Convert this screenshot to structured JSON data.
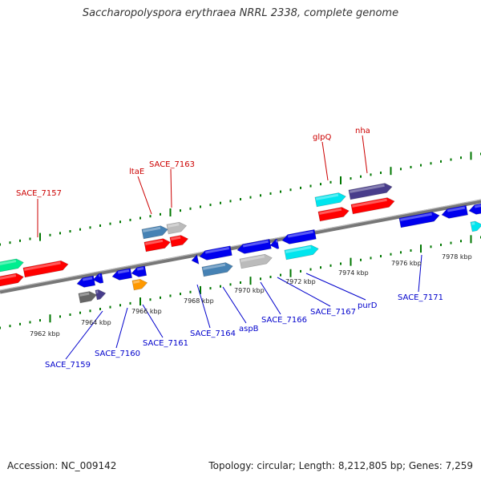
{
  "title": "Saccharopolyspora erythraea NRRL 2338, complete genome",
  "footer": {
    "accession": "Accession: NC_009142",
    "summary": "Topology: circular; Length: 8,212,805 bp; Genes: 7,259"
  },
  "colors": {
    "red": "#ff0000",
    "blue": "#0000ee",
    "steel": "#4682b4",
    "gray": "#bbbbbb",
    "darkgray": "#666666",
    "cyan": "#00e5ee",
    "green": "#00ee90",
    "slate": "#483d8b",
    "orange": "#ff9900",
    "tick": "#007700",
    "backbone": "#777777"
  },
  "tick_labels": [
    "7962 kbp",
    "7964 kbp",
    "7966 kbp",
    "7968 kbp",
    "7970 kbp",
    "7972 kbp",
    "7974 kbp",
    "7976 kbp",
    "7978 kbp"
  ],
  "gene_labels_top": [
    "SACE_7157",
    "ltaE",
    "SACE_7163",
    "glpQ",
    "nha"
  ],
  "gene_labels_bottom": [
    "SACE_7159",
    "SACE_7160",
    "SACE_7161",
    "SACE_7164",
    "aspB",
    "SACE_7166",
    "SACE_7167",
    "purD",
    "SACE_7171"
  ]
}
